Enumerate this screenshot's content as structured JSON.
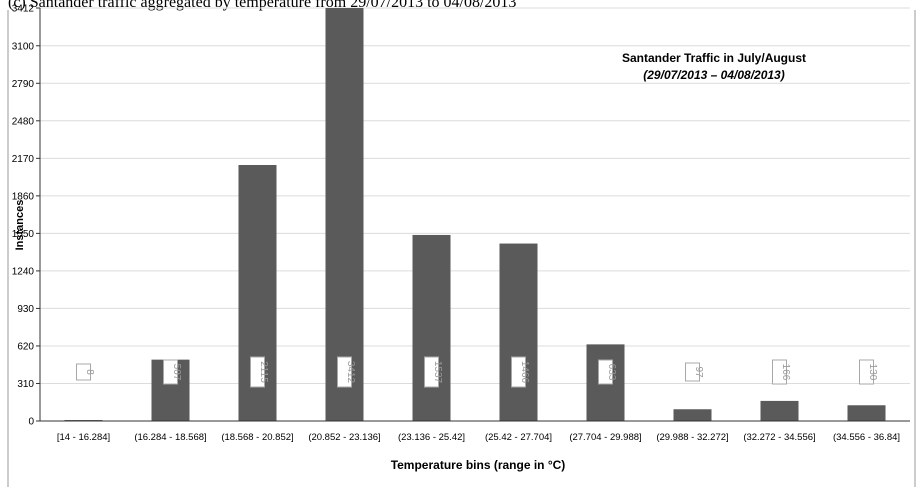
{
  "caption": "(c) Santander traffic aggregated by temperature from 29/07/2013 to 04/08/2013",
  "chart_data": {
    "type": "bar",
    "title": "Santander Traffic in July/August",
    "subtitle": "(29/07/2013 – 04/08/2013)",
    "xlabel": "Temperature bins (range in °C)",
    "ylabel": "Instances",
    "y_ticks": [
      0,
      310,
      620,
      930,
      1240,
      1550,
      1860,
      2170,
      2480,
      2790,
      3100,
      3412
    ],
    "ylim": [
      0,
      3412
    ],
    "grid": true,
    "bar_color": "#5a5a5a",
    "categories": [
      "[14 - 16.284]",
      "(16.284 - 18.568]",
      "(18.568 - 20.852]",
      "(20.852 - 23.136]",
      "(23.136 - 25.42]",
      "(25.42 - 27.704]",
      "(27.704 - 29.988]",
      "(29.988 - 32.272]",
      "(32.272 - 34.556]",
      "(34.556 - 36.84]"
    ],
    "values": [
      8,
      507,
      2115,
      3412,
      1537,
      1466,
      633,
      97,
      166,
      130
    ],
    "data_labels": [
      "8",
      "507",
      "2115",
      "3412",
      "1537",
      "1466",
      "633",
      "97",
      "166",
      "130"
    ]
  }
}
